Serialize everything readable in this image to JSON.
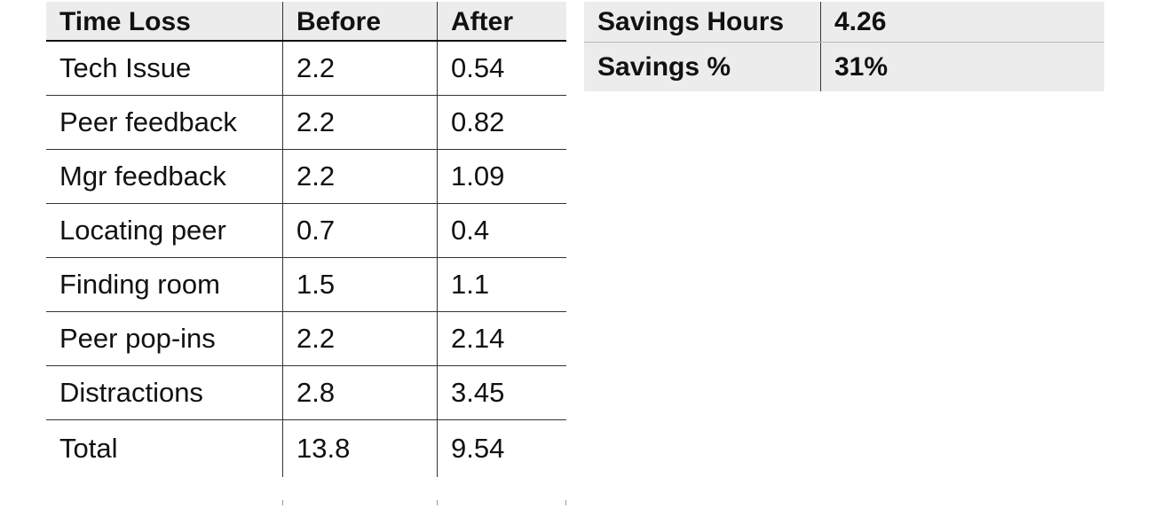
{
  "time_loss_table": {
    "headers": [
      "Time Loss",
      "Before",
      "After"
    ],
    "rows": [
      {
        "label": "Tech Issue",
        "before": "2.2",
        "after": "0.54"
      },
      {
        "label": "Peer feedback",
        "before": "2.2",
        "after": "0.82"
      },
      {
        "label": "Mgr feedback",
        "before": "2.2",
        "after": "1.09"
      },
      {
        "label": "Locating peer",
        "before": "0.7",
        "after": "0.4"
      },
      {
        "label": "Finding room",
        "before": "1.5",
        "after": "1.1"
      },
      {
        "label": "Peer pop-ins",
        "before": "2.2",
        "after": "2.14"
      },
      {
        "label": "Distractions",
        "before": "2.8",
        "after": "3.45"
      },
      {
        "label": "Total",
        "before": "13.8",
        "after": "9.54"
      }
    ]
  },
  "savings_table": {
    "rows": [
      {
        "label": "Savings Hours",
        "value": "4.26"
      },
      {
        "label": "Savings %",
        "value": "31%"
      }
    ]
  }
}
